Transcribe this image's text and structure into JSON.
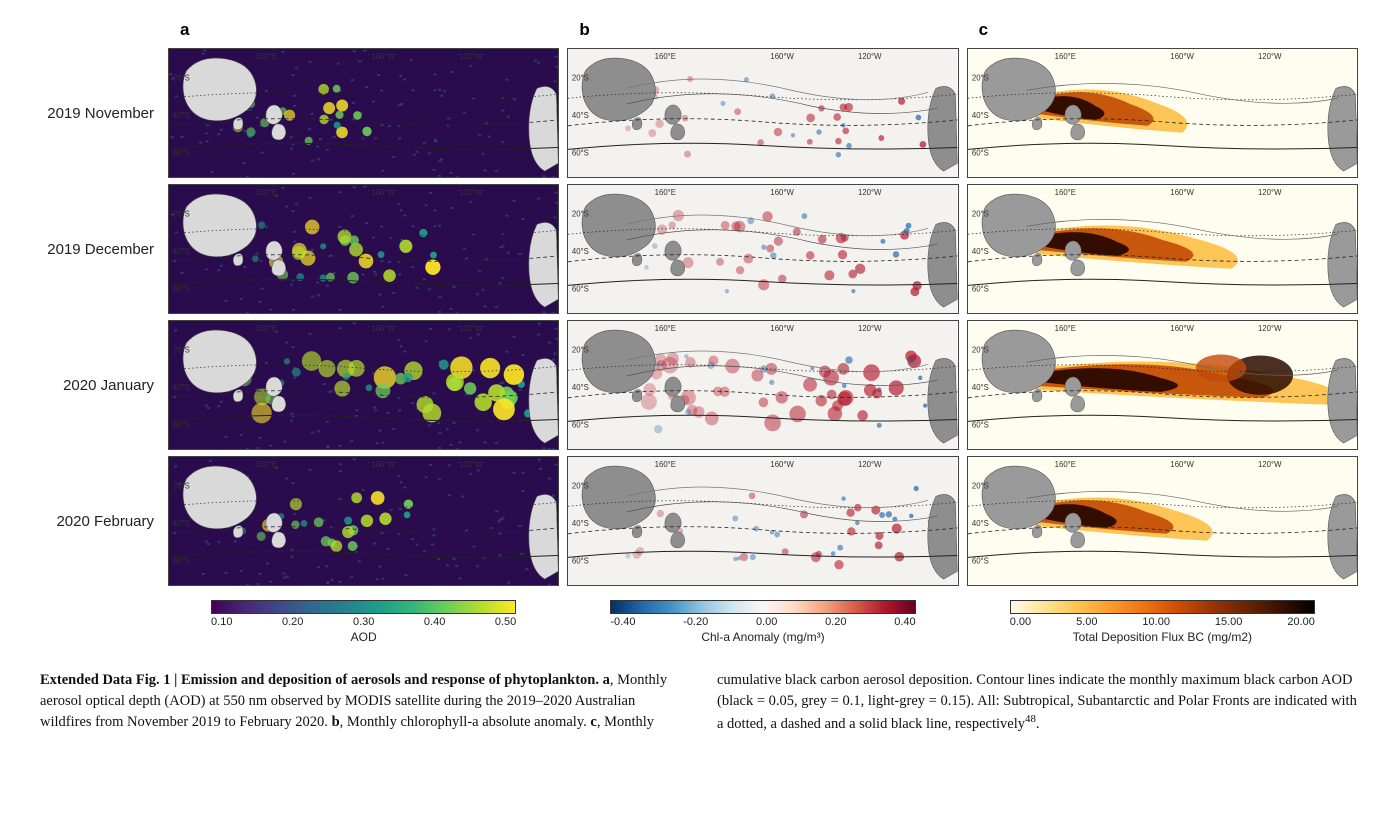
{
  "figure": {
    "rows": [
      "2019 November",
      "2019 December",
      "2020 January",
      "2020 February"
    ],
    "columns": [
      {
        "letter": "a",
        "colormap": "viridis",
        "bg_gradient": "linear-gradient(90deg,#440154,#482878,#3e4a89,#31688e,#26828e,#1f9e89,#35b779,#6ece58,#b5de2c,#fde725)",
        "ticks": [
          "0.10",
          "0.20",
          "0.30",
          "0.40",
          "0.50"
        ],
        "label": "AOD",
        "axis_top": [
          "160°E",
          "160°W",
          "120°W"
        ],
        "axis_left": [
          "20°S",
          "40°S",
          "60°S"
        ],
        "style": {
          "base_fill": "#2a0b4e",
          "land_fill": "#d9d9d9",
          "grid_color": "#888888",
          "border_color": "#222222"
        }
      },
      {
        "letter": "b",
        "colormap": "RdBu_r",
        "bg_gradient": "linear-gradient(90deg,#053061,#2166ac,#4393c3,#92c5de,#d1e5f0,#f7f7f7,#fddbc7,#f4a582,#d6604d,#b2182b,#67001f)",
        "ticks": [
          "-0.40",
          "-0.20",
          "0.00",
          "0.20",
          "0.40"
        ],
        "label": "Chl-a Anomaly (mg/m³)",
        "axis_top": [
          "160°E",
          "160°W",
          "120°W"
        ],
        "axis_left": [
          "20°S",
          "40°S",
          "60°S"
        ],
        "style": {
          "base_fill": "#f4f2ef",
          "land_fill": "#8e8e8e",
          "grid_color": "#aaaaaa",
          "border_color": "#222222",
          "pos_color": "#b2182b",
          "neg_color": "#2166ac"
        }
      },
      {
        "letter": "c",
        "colormap": "inferno_like",
        "bg_gradient": "linear-gradient(90deg,#fffcea,#fee391,#fec44f,#fe9929,#ec7014,#cc4c02,#993404,#662506,#3a1000,#000000)",
        "ticks": [
          "0.00",
          "5.00",
          "10.00",
          "15.00",
          "20.00"
        ],
        "label": "Total Deposition Flux BC (mg/m2)",
        "axis_top": [
          "160°E",
          "160°W",
          "120°W"
        ],
        "axis_left": [
          "20°S",
          "40°S",
          "60°S"
        ],
        "style": {
          "base_fill": "#fffdf0",
          "land_fill": "#9a9a9a",
          "grid_color": "#aaaaaa",
          "border_color": "#222222",
          "plume_dark": "#2b0a00",
          "plume_mid": "#c24a07",
          "plume_light": "#fdbb3b"
        }
      }
    ],
    "intensity_by_row": [
      0.35,
      0.55,
      0.95,
      0.45
    ]
  },
  "caption": {
    "title_bold": "Extended Data Fig. 1 | Emission and deposition of aerosols and response of phytoplankton.",
    "part_a_label": "a",
    "part_a_text": ", Monthly aerosol optical depth (AOD) at 550 nm observed by MODIS satellite during the 2019–2020 Australian wildfires from November 2019 to February 2020. ",
    "part_b_label": "b",
    "part_b_text": ", Monthly chlorophyll-a absolute anomaly. ",
    "part_c_label": "c",
    "part_c_text": ", Monthly",
    "col2_lead": "cumulative black carbon aerosol deposition. Contour lines indicate the monthly maximum black carbon AOD (black = 0.05, grey = 0.1, light-grey = 0.15). All: Subtropical, Subantarctic and Polar Fronts are indicated with a dotted, a dashed and a solid black line, respectively",
    "ref_sup": "48",
    "col2_tail": "."
  }
}
